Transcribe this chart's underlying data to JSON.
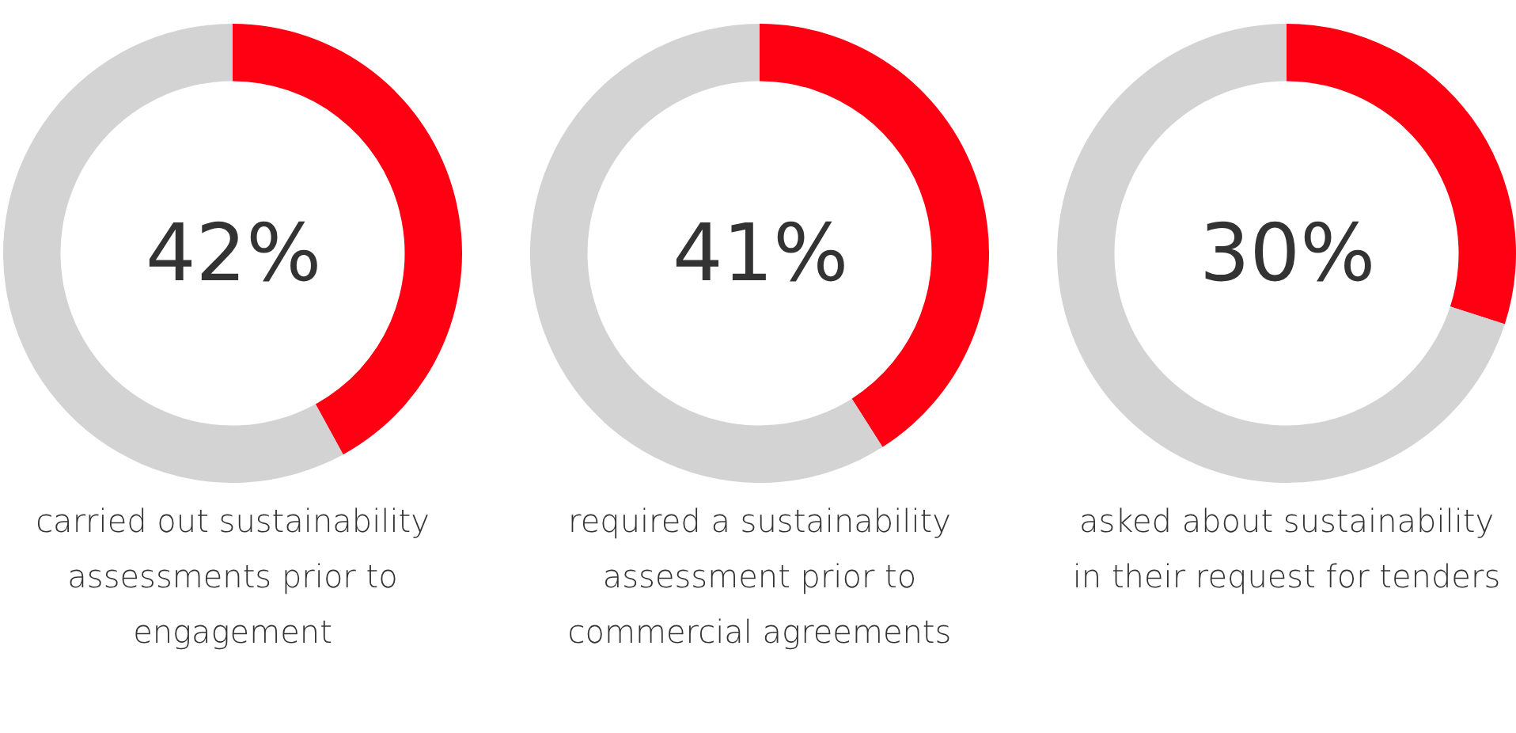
{
  "chart_data": [
    {
      "type": "donut",
      "categories": [
        null,
        null
      ],
      "values": [
        42,
        58
      ],
      "colors": [
        "#ff0013",
        "#d3d3d3"
      ],
      "value_labels": [
        "42%",
        null
      ],
      "annotations": [
        "carried out sustainability assessments prior to engagement"
      ]
    },
    {
      "type": "donut",
      "categories": [
        null,
        null
      ],
      "values": [
        41,
        59
      ],
      "colors": [
        "#ff0013",
        "#d3d3d3"
      ],
      "value_labels": [
        "41%",
        null
      ],
      "annotations": [
        "required a sustainability assessment prior to commercial agreements"
      ]
    },
    {
      "type": "donut",
      "categories": [
        null,
        null
      ],
      "values": [
        30,
        70
      ],
      "colors": [
        "#ff0013",
        "#d3d3d3"
      ],
      "value_labels": [
        "30%",
        null
      ],
      "annotations": [
        "asked about sustainability in their request for tenders"
      ]
    }
  ]
}
